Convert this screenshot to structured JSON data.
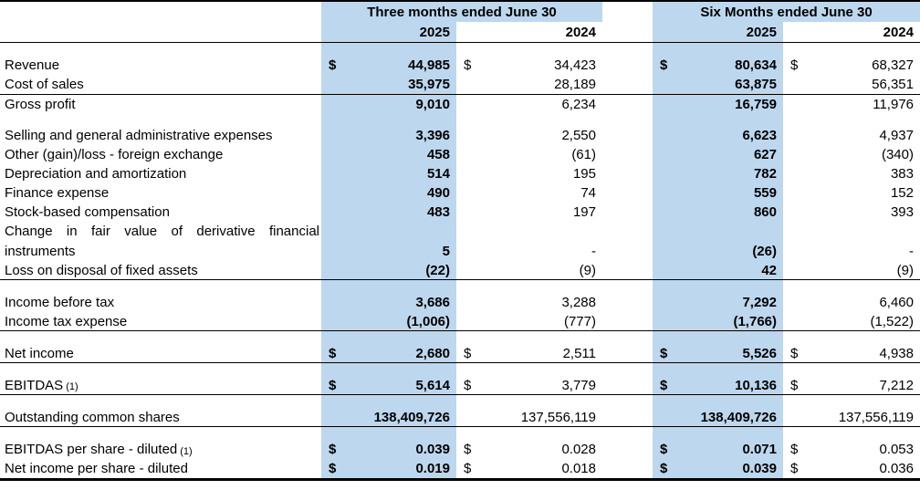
{
  "colors": {
    "highlight": "#BDD7EE",
    "border": "#000000"
  },
  "table": {
    "groups": [
      {
        "label": "Three months ended June 30"
      },
      {
        "label": "Six Months ended June 30"
      }
    ],
    "years": [
      "2025",
      "2024",
      "2025",
      "2024"
    ],
    "rows": [
      {
        "type": "spacer"
      },
      {
        "label": "Revenue",
        "cells": [
          [
            "$",
            "44,985"
          ],
          [
            "$",
            "34,423"
          ],
          [
            "$",
            "80,634"
          ],
          [
            "$",
            "68,327"
          ]
        ]
      },
      {
        "label": "Cost of sales",
        "cells": [
          [
            "",
            "35,975"
          ],
          [
            "",
            "28,189"
          ],
          [
            "",
            "63,875"
          ],
          [
            "",
            "56,351"
          ]
        ]
      },
      {
        "label": "Gross profit",
        "rule_top": true,
        "cells": [
          [
            "",
            "9,010"
          ],
          [
            "",
            "6,234"
          ],
          [
            "",
            "16,759"
          ],
          [
            "",
            "11,976"
          ]
        ]
      },
      {
        "type": "spacer"
      },
      {
        "label": "Selling and general administrative expenses",
        "cells": [
          [
            "",
            "3,396"
          ],
          [
            "",
            "2,550"
          ],
          [
            "",
            "6,623"
          ],
          [
            "",
            "4,937"
          ]
        ]
      },
      {
        "label": "Other (gain)/loss - foreign exchange",
        "cells": [
          [
            "",
            "458"
          ],
          [
            "",
            "(61)"
          ],
          [
            "",
            "627"
          ],
          [
            "",
            "(340)"
          ]
        ]
      },
      {
        "label": "Depreciation and amortization",
        "cells": [
          [
            "",
            "514"
          ],
          [
            "",
            "195"
          ],
          [
            "",
            "782"
          ],
          [
            "",
            "383"
          ]
        ]
      },
      {
        "label": "Finance expense",
        "cells": [
          [
            "",
            "490"
          ],
          [
            "",
            "74"
          ],
          [
            "",
            "559"
          ],
          [
            "",
            "152"
          ]
        ]
      },
      {
        "label": "Stock-based compensation",
        "cells": [
          [
            "",
            "483"
          ],
          [
            "",
            "197"
          ],
          [
            "",
            "860"
          ],
          [
            "",
            "393"
          ]
        ]
      },
      {
        "label": "Change in fair value of derivative financial instruments",
        "wrap": true,
        "cells": [
          [
            "",
            "5"
          ],
          [
            "",
            "-"
          ],
          [
            "",
            "(26)"
          ],
          [
            "",
            "-"
          ]
        ]
      },
      {
        "label": "Loss on disposal of fixed assets",
        "rule_bottom": true,
        "cells": [
          [
            "",
            "(22)"
          ],
          [
            "",
            "(9)"
          ],
          [
            "",
            "42"
          ],
          [
            "",
            "(9)"
          ]
        ]
      },
      {
        "type": "spacer"
      },
      {
        "label": "Income before tax",
        "cells": [
          [
            "",
            "3,686"
          ],
          [
            "",
            "3,288"
          ],
          [
            "",
            "7,292"
          ],
          [
            "",
            "6,460"
          ]
        ]
      },
      {
        "label": "Income tax expense",
        "rule_bottom": true,
        "cells": [
          [
            "",
            "(1,006)"
          ],
          [
            "",
            "(777)"
          ],
          [
            "",
            "(1,766)"
          ],
          [
            "",
            "(1,522)"
          ]
        ]
      },
      {
        "type": "spacer"
      },
      {
        "label": "Net income",
        "rule_bottom": true,
        "cells": [
          [
            "$",
            "2,680"
          ],
          [
            "$",
            "2,511"
          ],
          [
            "$",
            "5,526"
          ],
          [
            "$",
            "4,938"
          ]
        ]
      },
      {
        "type": "spacer"
      },
      {
        "label": "EBITDAS",
        "note": "(1)",
        "rule_bottom": true,
        "cells": [
          [
            "$",
            "5,614"
          ],
          [
            "$",
            "3,779"
          ],
          [
            "$",
            "10,136"
          ],
          [
            "$",
            "7,212"
          ]
        ]
      },
      {
        "type": "spacer"
      },
      {
        "label": "Outstanding common shares",
        "rule_bottom": true,
        "cells": [
          [
            "",
            "138,409,726"
          ],
          [
            "",
            "137,556,119"
          ],
          [
            "",
            "138,409,726"
          ],
          [
            "",
            "137,556,119"
          ]
        ]
      },
      {
        "type": "spacer"
      },
      {
        "label": "EBITDAS per share - diluted",
        "note": "(1)",
        "cells": [
          [
            "$",
            "0.039"
          ],
          [
            "$",
            "0.028"
          ],
          [
            "$",
            "0.071"
          ],
          [
            "$",
            "0.053"
          ]
        ]
      },
      {
        "label": "Net income per share - diluted",
        "cells": [
          [
            "$",
            "0.019"
          ],
          [
            "$",
            "0.018"
          ],
          [
            "$",
            "0.039"
          ],
          [
            "$",
            "0.036"
          ]
        ]
      }
    ]
  }
}
